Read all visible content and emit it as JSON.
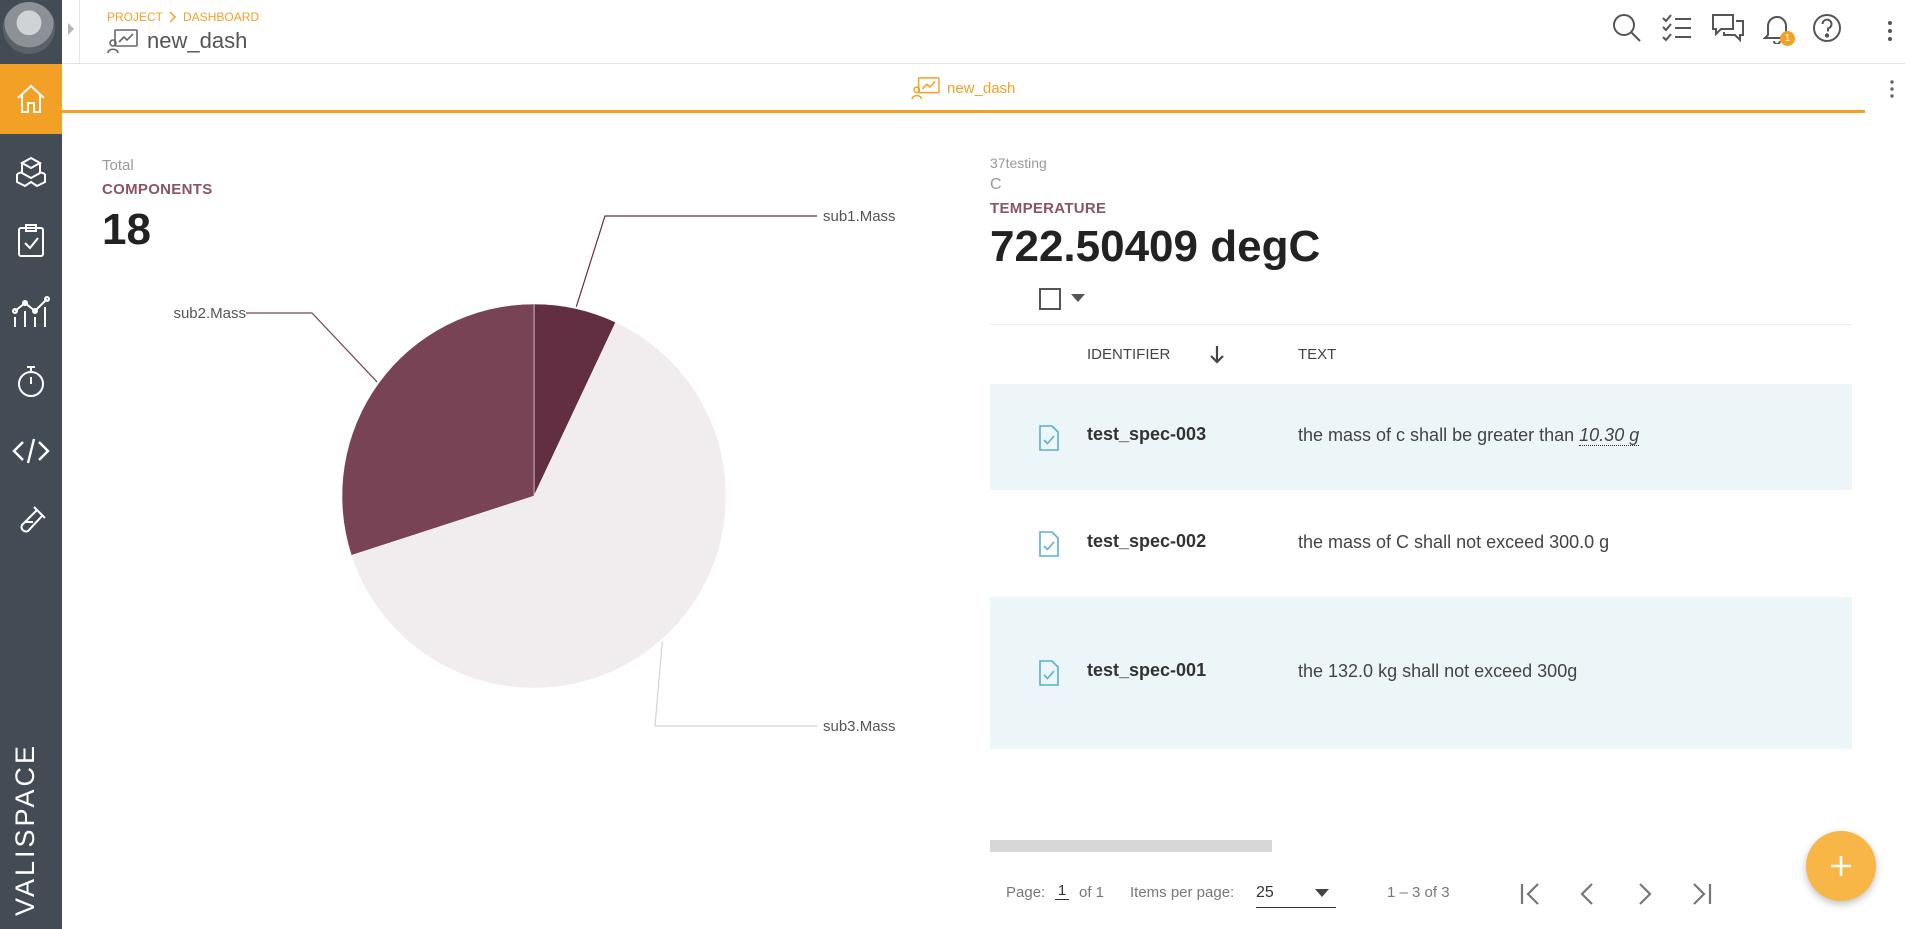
{
  "breadcrumb": {
    "project": "PROJECT",
    "dashboard": "DASHBOARD"
  },
  "page": {
    "title": "new_dash"
  },
  "tab": {
    "label": "new_dash"
  },
  "header": {
    "notification_count": "1"
  },
  "sidebar": {
    "items": [
      {
        "name": "home-icon",
        "active": true
      },
      {
        "name": "components-icon"
      },
      {
        "name": "requirements-icon"
      },
      {
        "name": "analytics-icon"
      },
      {
        "name": "timer-icon"
      },
      {
        "name": "code-icon"
      },
      {
        "name": "test-tube-icon"
      }
    ],
    "brand": "VALISPACE"
  },
  "components_widget": {
    "caption": "Total",
    "label": "COMPONENTS",
    "value": "18"
  },
  "chart_data": {
    "type": "pie",
    "slices": [
      {
        "label": "sub1.Mass",
        "value": 7,
        "color": "#622f42"
      },
      {
        "label": "sub3.Mass",
        "value": 63,
        "color": "#f1ecee"
      },
      {
        "label": "sub2.Mass",
        "value": 30,
        "color": "#774355"
      }
    ]
  },
  "temperature_widget": {
    "project": "37testing",
    "component": "C",
    "label": "TEMPERATURE",
    "value": "722.50409 degC"
  },
  "table": {
    "columns": {
      "identifier": "IDENTIFIER",
      "text": "TEXT"
    },
    "rows": [
      {
        "id": "test_spec-003",
        "text_before": "the mass of c shall be greater than ",
        "text_value": "10.30 g"
      },
      {
        "id": "test_spec-002",
        "text": "the mass of C shall not exceed 300.0 g"
      },
      {
        "id": "test_spec-001",
        "text": "the 132.0 kg shall not exceed 300g"
      }
    ]
  },
  "pagination": {
    "page_label": "Page:",
    "page": "1",
    "of_label": "of 1",
    "items_label": "Items per page:",
    "items_per_page": "25",
    "range": "1 – 3 of 3"
  }
}
